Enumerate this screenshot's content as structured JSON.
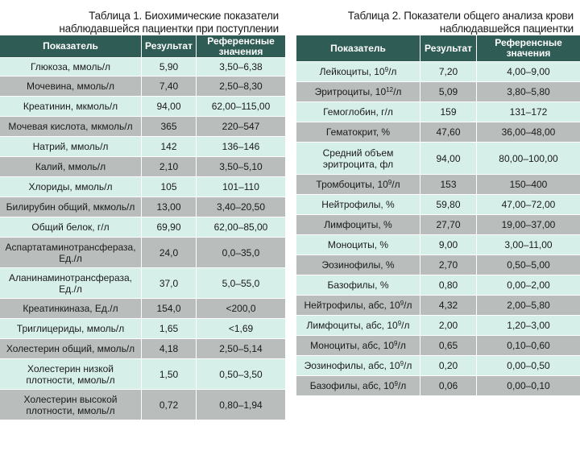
{
  "table1": {
    "caption_line1": "Таблица 1. Биохимические показатели",
    "caption_line2": "наблюдавшейся пациентки при поступлении",
    "headers": {
      "indicator": "Показатель",
      "result": "Результат",
      "reference": "Референсные значения"
    },
    "rows": [
      {
        "name": "Глюкоза, ммоль/л",
        "result": "5,90",
        "ref": "3,50–6,38"
      },
      {
        "name": "Мочевина, ммоль/л",
        "result": "7,40",
        "ref": "2,50–8,30"
      },
      {
        "name": "Креатинин, мкмоль/л",
        "result": "94,00",
        "ref": "62,00–115,00"
      },
      {
        "name": "Мочевая кислота, мкмоль/л",
        "result": "365",
        "ref": "220–547"
      },
      {
        "name": "Натрий, ммоль/л",
        "result": "142",
        "ref": "136–146"
      },
      {
        "name": "Калий, ммоль/л",
        "result": "2,10",
        "ref": "3,50–5,10"
      },
      {
        "name": "Хлориды, ммоль/л",
        "result": "105",
        "ref": "101–110"
      },
      {
        "name": "Билирубин общий, мкмоль/л",
        "result": "13,00",
        "ref": "3,40–20,50"
      },
      {
        "name": "Общий белок, г/л",
        "result": "69,90",
        "ref": "62,00–85,00"
      },
      {
        "name": "Аспартатаминотрансфераза, Ед./л",
        "result": "24,0",
        "ref": "0,0–35,0"
      },
      {
        "name": "Аланинаминотрансфераза, Ед./л",
        "result": "37,0",
        "ref": "5,0–55,0"
      },
      {
        "name": "Креатинкиназа, Ед./л",
        "result": "154,0",
        "ref": "<200,0"
      },
      {
        "name": "Триглицериды, ммоль/л",
        "result": "1,65",
        "ref": "<1,69"
      },
      {
        "name": "Холестерин общий, ммоль/л",
        "result": "4,18",
        "ref": "2,50–5,14"
      },
      {
        "name": "Холестерин низкой плотности, ммоль/л",
        "result": "1,50",
        "ref": "0,50–3,50"
      },
      {
        "name": "Холестерин высокой плотности, ммоль/л",
        "result": "0,72",
        "ref": "0,80–1,94"
      }
    ]
  },
  "table2": {
    "caption_line1": "Таблица 2. Показатели общего анализа крови",
    "caption_line2": "наблюдавшейся пациентки",
    "headers": {
      "indicator": "Показатель",
      "result": "Результат",
      "reference": "Референсные значения"
    },
    "rows": [
      {
        "name": "Лейкоциты, 10",
        "sup": "9",
        "tail": "/л",
        "result": "7,20",
        "ref": "4,00–9,00"
      },
      {
        "name": "Эритроциты, 10",
        "sup": "12",
        "tail": "/л",
        "result": "5,09",
        "ref": "3,80–5,80"
      },
      {
        "name": "Гемоглобин, г/л",
        "sup": "",
        "tail": "",
        "result": "159",
        "ref": "131–172"
      },
      {
        "name": "Гематокрит, %",
        "sup": "",
        "tail": "",
        "result": "47,60",
        "ref": "36,00–48,00"
      },
      {
        "name": "Средний объем эритроцита, фл",
        "sup": "",
        "tail": "",
        "result": "94,00",
        "ref": "80,00–100,00"
      },
      {
        "name": "Тромбоциты, 10",
        "sup": "9",
        "tail": "/л",
        "result": "153",
        "ref": "150–400"
      },
      {
        "name": "Нейтрофилы, %",
        "sup": "",
        "tail": "",
        "result": "59,80",
        "ref": "47,00–72,00"
      },
      {
        "name": "Лимфоциты, %",
        "sup": "",
        "tail": "",
        "result": "27,70",
        "ref": "19,00–37,00"
      },
      {
        "name": "Моноциты, %",
        "sup": "",
        "tail": "",
        "result": "9,00",
        "ref": "3,00–11,00"
      },
      {
        "name": "Эозинофилы, %",
        "sup": "",
        "tail": "",
        "result": "2,70",
        "ref": "0,50–5,00"
      },
      {
        "name": "Базофилы, %",
        "sup": "",
        "tail": "",
        "result": "0,80",
        "ref": "0,00–2,00"
      },
      {
        "name": "Нейтрофилы, абс, 10",
        "sup": "9",
        "tail": "/л",
        "result": "4,32",
        "ref": "2,00–5,80"
      },
      {
        "name": "Лимфоциты, абс, 10",
        "sup": "9",
        "tail": "/л",
        "result": "2,00",
        "ref": "1,20–3,00"
      },
      {
        "name": "Моноциты, абс, 10",
        "sup": "9",
        "tail": "/л",
        "result": "0,65",
        "ref": "0,10–0,60"
      },
      {
        "name": "Эозинофилы, абс, 10",
        "sup": "9",
        "tail": "/л",
        "result": "0,20",
        "ref": "0,00–0,50"
      },
      {
        "name": "Базофилы, абс, 10",
        "sup": "9",
        "tail": "/л",
        "result": "0,06",
        "ref": "0,00–0,10"
      }
    ]
  }
}
